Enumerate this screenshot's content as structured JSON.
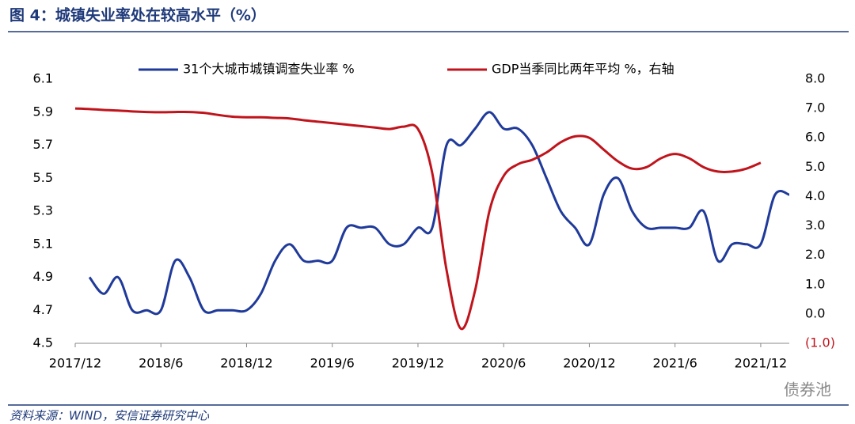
{
  "chart_data": {
    "type": "line",
    "title": "图 4：城镇失业率处在较高水平（%）",
    "source": "资料来源：WIND，安信证券研究中心",
    "watermark": "债券池",
    "categories": [
      "2017/12",
      null,
      null,
      null,
      null,
      null,
      "2018/6",
      null,
      null,
      null,
      null,
      null,
      "2018/12",
      null,
      null,
      null,
      null,
      null,
      "2019/6",
      null,
      null,
      null,
      null,
      null,
      "2019/12",
      null,
      null,
      null,
      null,
      null,
      "2020/6",
      null,
      null,
      null,
      null,
      null,
      "2020/12",
      null,
      null,
      null,
      null,
      null,
      "2021/6",
      null,
      null,
      null,
      null,
      null,
      "2021/12",
      null,
      null
    ],
    "series": [
      {
        "name": "31个大城市城镇调查失业率 %",
        "color": "#1f3a9a",
        "axis": "y",
        "values": [
          null,
          4.9,
          4.8,
          4.9,
          4.7,
          4.7,
          4.7,
          5.0,
          4.9,
          4.7,
          4.7,
          4.7,
          4.7,
          4.8,
          5.0,
          5.1,
          5.0,
          5.0,
          5.0,
          5.2,
          5.2,
          5.2,
          5.1,
          5.1,
          5.2,
          5.2,
          5.7,
          5.7,
          5.8,
          5.9,
          5.8,
          5.8,
          5.7,
          5.5,
          5.3,
          5.2,
          5.1,
          5.4,
          5.5,
          5.3,
          5.2,
          5.2,
          5.2,
          5.2,
          5.3,
          5.0,
          5.1,
          5.1,
          5.1,
          5.4,
          5.4
        ]
      },
      {
        "name": "GDP当季同比两年平均 %，右轴",
        "color": "#c0141c",
        "axis": "y2",
        "values": [
          7.0,
          6.98,
          6.95,
          6.93,
          6.9,
          6.88,
          6.87,
          6.88,
          6.88,
          6.85,
          6.78,
          6.72,
          6.7,
          6.7,
          6.68,
          6.66,
          6.6,
          6.55,
          6.5,
          6.45,
          6.4,
          6.35,
          6.3,
          6.38,
          6.3,
          4.8,
          1.5,
          -0.5,
          0.8,
          3.5,
          4.7,
          5.1,
          5.25,
          5.5,
          5.85,
          6.05,
          6.0,
          5.6,
          5.2,
          4.95,
          5.0,
          5.3,
          5.45,
          5.3,
          5.0,
          4.85,
          4.85,
          4.95,
          5.15,
          null,
          null
        ]
      }
    ],
    "ylim": [
      4.5,
      6.1
    ],
    "yticks": [
      4.5,
      4.7,
      4.9,
      5.1,
      5.3,
      5.5,
      5.7,
      5.9,
      6.1
    ],
    "y2lim": [
      -1,
      8
    ],
    "y2ticks": [
      {
        "value": -1,
        "label": "(1.0)"
      },
      {
        "value": 0,
        "label": "0.0"
      },
      {
        "value": 1,
        "label": "1.0"
      },
      {
        "value": 2,
        "label": "2.0"
      },
      {
        "value": 3,
        "label": "3.0"
      },
      {
        "value": 4,
        "label": "4.0"
      },
      {
        "value": 5,
        "label": "5.0"
      },
      {
        "value": 6,
        "label": "6.0"
      },
      {
        "value": 7,
        "label": "7.0"
      },
      {
        "value": 8,
        "label": "8.0"
      }
    ],
    "y2_negative_color": "#c0141c",
    "grid": false
  }
}
